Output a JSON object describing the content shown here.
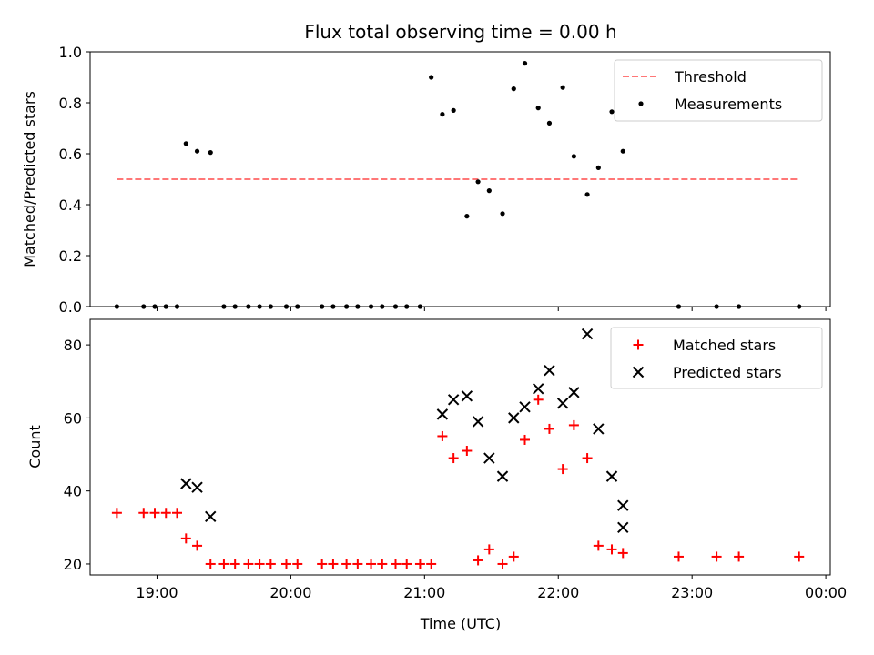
{
  "chart_data": [
    {
      "type": "scatter",
      "title": "Flux total observing time = 0.00 h",
      "xlabel": "",
      "ylabel": "Matched/Predicted stars",
      "ylim": [
        0,
        1
      ],
      "yticks": [
        0.0,
        0.2,
        0.4,
        0.6,
        0.8,
        1.0
      ],
      "ytick_labels": [
        "0.0",
        "0.2",
        "0.4",
        "0.6",
        "0.8",
        "1.0"
      ],
      "threshold": {
        "name": "Threshold",
        "value": 0.5,
        "x_start": "18:42",
        "x_end": "23:48",
        "color": "#ff7777",
        "style": "dashed"
      },
      "series": [
        {
          "name": "Measurements",
          "marker": "dot",
          "color": "#000000",
          "x": [
            "18:42",
            "18:54",
            "18:59",
            "19:04",
            "19:09",
            "19:13",
            "19:18",
            "19:24",
            "19:30",
            "19:35",
            "19:41",
            "19:46",
            "19:51",
            "19:58",
            "20:03",
            "20:14",
            "20:19",
            "20:25",
            "20:30",
            "20:36",
            "20:41",
            "20:47",
            "20:52",
            "20:58",
            "21:03",
            "21:08",
            "21:13",
            "21:19",
            "21:24",
            "21:29",
            "21:35",
            "21:40",
            "21:45",
            "21:51",
            "21:56",
            "22:02",
            "22:07",
            "22:13",
            "22:18",
            "22:24",
            "22:29",
            "22:54",
            "23:11",
            "23:21",
            "23:48"
          ],
          "y": [
            0.0,
            0.0,
            0.0,
            0.0,
            0.0,
            0.64,
            0.61,
            0.605,
            0.0,
            0.0,
            0.0,
            0.0,
            0.0,
            0.0,
            0.0,
            0.0,
            0.0,
            0.0,
            0.0,
            0.0,
            0.0,
            0.0,
            0.0,
            0.0,
            0.9,
            0.755,
            0.77,
            0.355,
            0.49,
            0.455,
            0.365,
            0.855,
            0.955,
            0.78,
            0.72,
            0.86,
            0.59,
            0.44,
            0.545,
            0.765,
            0.61,
            0.0,
            0.0,
            0.0,
            0.0
          ]
        }
      ],
      "legend": {
        "position": "top-right",
        "entries": [
          "Threshold",
          "Measurements"
        ]
      }
    },
    {
      "type": "scatter",
      "title": "",
      "xlabel": "Time (UTC)",
      "ylabel": "Count",
      "ylim": [
        17,
        87
      ],
      "yticks": [
        20,
        40,
        60,
        80
      ],
      "ytick_labels": [
        "20",
        "40",
        "60",
        "80"
      ],
      "xlim": [
        "18:30",
        "24:02"
      ],
      "xticks": [
        "19:00",
        "20:00",
        "21:00",
        "22:00",
        "23:00",
        "24:00"
      ],
      "xtick_labels": [
        "19:00",
        "20:00",
        "21:00",
        "22:00",
        "23:00",
        "00:00"
      ],
      "series": [
        {
          "name": "Matched stars",
          "marker": "plus",
          "color": "#ff0000",
          "x": [
            "18:42",
            "18:54",
            "18:59",
            "19:04",
            "19:09",
            "19:13",
            "19:18",
            "19:24",
            "19:30",
            "19:35",
            "19:41",
            "19:46",
            "19:51",
            "19:58",
            "20:03",
            "20:14",
            "20:19",
            "20:25",
            "20:30",
            "20:36",
            "20:41",
            "20:47",
            "20:52",
            "20:58",
            "21:03",
            "21:08",
            "21:13",
            "21:19",
            "21:24",
            "21:29",
            "21:35",
            "21:40",
            "21:45",
            "21:51",
            "21:56",
            "22:02",
            "22:07",
            "22:13",
            "22:18",
            "22:24",
            "22:29",
            "22:54",
            "23:11",
            "23:21",
            "23:48"
          ],
          "y": [
            34,
            34,
            34,
            34,
            34,
            27,
            25,
            20,
            20,
            20,
            20,
            20,
            20,
            20,
            20,
            20,
            20,
            20,
            20,
            20,
            20,
            20,
            20,
            20,
            20,
            55,
            49,
            51,
            21,
            24,
            20,
            22,
            54,
            65,
            57,
            46,
            58,
            49,
            25,
            24,
            23,
            22,
            22,
            22,
            22
          ]
        },
        {
          "name": "Predicted stars",
          "marker": "x",
          "color": "#000000",
          "x": [
            "19:13",
            "19:18",
            "19:24",
            "21:08",
            "21:13",
            "21:19",
            "21:24",
            "21:29",
            "21:35",
            "21:40",
            "21:45",
            "21:51",
            "21:56",
            "22:02",
            "22:07",
            "22:13",
            "22:18",
            "22:24",
            "22:29"
          ],
          "y": [
            42,
            41,
            33,
            61,
            65,
            66,
            59,
            49,
            44,
            60,
            63,
            68,
            73,
            64,
            67,
            83,
            57,
            44,
            30
          ]
        }
      ],
      "extra_predicted_last": {
        "x": "22:29",
        "y": 36
      },
      "legend": {
        "position": "top-right",
        "entries": [
          "Matched stars",
          "Predicted stars"
        ]
      }
    }
  ]
}
